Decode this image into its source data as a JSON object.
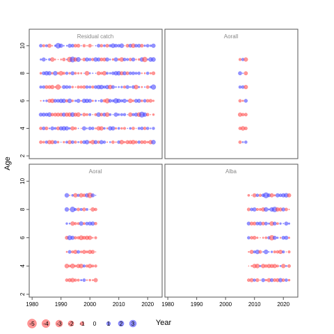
{
  "chart_data": {
    "type": "scatter",
    "subtype": "bubble",
    "xlabel": "Year",
    "ylabel": "Age",
    "xlim": [
      1979,
      2025
    ],
    "ylim": [
      1.8,
      11.2
    ],
    "x_ticks": [
      1980,
      1990,
      2000,
      2010,
      2020
    ],
    "y_ticks": [
      2,
      4,
      6,
      8,
      10
    ],
    "colors": {
      "positive": "#3b3bff",
      "negative": "#ff4040",
      "frame": "#555555",
      "strip_text": "#888888"
    },
    "legend": {
      "placement": "bottom-left",
      "values": [
        -5,
        -4,
        -3,
        -2,
        -1,
        0,
        1,
        2,
        3
      ],
      "labels": [
        "-5",
        "-4",
        "-3",
        "-2",
        "-1",
        "0",
        "1",
        "2",
        "3"
      ]
    },
    "panels": [
      {
        "title": "Residual catch",
        "ages": [
          3,
          4,
          5,
          6,
          7,
          8,
          9,
          10
        ],
        "year_start": 1983,
        "year_end": 2022,
        "seed": 11
      },
      {
        "title": "Aorall",
        "ages": [
          3,
          4,
          5,
          6,
          7,
          8,
          9
        ],
        "year_start": 2005,
        "year_end": 2007,
        "seed": 23
      },
      {
        "title": "Aoral",
        "ages": [
          3,
          4,
          5,
          6,
          7,
          8,
          9
        ],
        "year_start": 1992,
        "year_end": 2002,
        "seed": 37
      },
      {
        "title": "Alba",
        "ages": [
          3,
          4,
          5,
          6,
          7,
          8,
          9
        ],
        "year_start": 2008,
        "year_end": 2022,
        "seed": 53
      }
    ]
  }
}
